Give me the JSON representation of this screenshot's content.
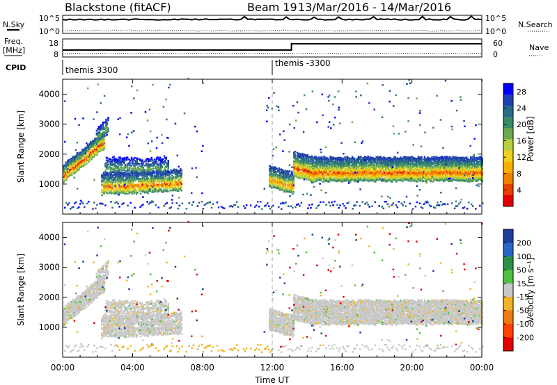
{
  "header": {
    "station": "Blackstone (fitACF)",
    "beam": "Beam 19",
    "date_range": "13/Mar/2016 - 14/Mar/2016"
  },
  "panels": {
    "nsky_label": "N.Sky",
    "nsearch_label": "N.Search",
    "freq_label": "Freq.",
    "freq_unit": "[MHz]",
    "nave_label": "Nave",
    "cpid_label": "CPID",
    "noise_ticks": [
      "10^5",
      "10^0"
    ],
    "freq_ticks": [
      "18",
      "8"
    ],
    "nave_ticks": [
      "60",
      "0"
    ],
    "cpid_segments": [
      "themis 3300",
      "themis -3300"
    ]
  },
  "chart_data": [
    {
      "type": "heatmap",
      "name": "power",
      "ylabel": "Slant Range [km]",
      "yticks": [
        1000,
        2000,
        3000,
        4000
      ],
      "colorbar_label": "Power [dB]",
      "colorbar_ticks": [
        4,
        8,
        12,
        16,
        20,
        24,
        28
      ],
      "colorbar_colors": [
        "#0000ff",
        "#2040b0",
        "#2a6a8a",
        "#3a8a6a",
        "#6aa84f",
        "#b6d040",
        "#f0d020",
        "#f8b000",
        "#f08000",
        "#e84000",
        "#e00000"
      ],
      "colorbar_range": [
        0,
        30
      ]
    },
    {
      "type": "heatmap",
      "name": "velocity",
      "ylabel": "Slant Range [km]",
      "yticks": [
        1000,
        2000,
        3000,
        4000
      ],
      "colorbar_label": "Velocity [m s⁻¹]",
      "colorbar_ticks": [
        200,
        100,
        50,
        15,
        -15,
        -50,
        -100,
        -200
      ],
      "colorbar_colors": [
        "#1e3c9a",
        "#2a66c8",
        "#2f8f4a",
        "#4fc040",
        "#c8c8c8",
        "#f0b428",
        "#f07a10",
        "#ff4000",
        "#e00000"
      ]
    }
  ],
  "x_axis": {
    "label": "Time UT",
    "ticks": [
      "00:00",
      "04:00",
      "08:00",
      "12:00",
      "16:00",
      "20:00",
      "00:00"
    ]
  }
}
